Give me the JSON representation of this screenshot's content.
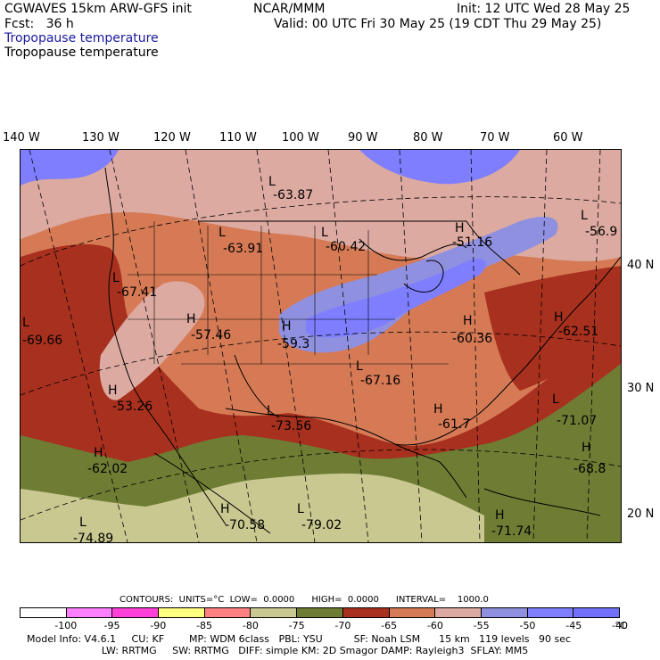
{
  "header": {
    "line1_left": "CGWAVES 15km ARW-GFS init",
    "line1_center": "NCAR/MMM",
    "line1_right": "Init: 12 UTC Wed 28 May 25",
    "line2_left": "Fcst:   36 h",
    "line2_right": "Valid: 00 UTC Fri 30 May 25 (19 CDT Thu 29 May 25)",
    "field_title_blue": "Tropopause temperature",
    "field_title_black": "Tropopause temperature"
  },
  "axes": {
    "longitude_labels": [
      "140 W",
      "130 W",
      "120 W",
      "110 W",
      "100 W",
      "90 W",
      "80 W",
      "70 W",
      "60 W"
    ],
    "latitude_labels": [
      "40 N",
      "30 N",
      "20 N"
    ]
  },
  "map": {
    "labels": [
      {
        "letter": "L",
        "value": "-63.87"
      },
      {
        "letter": "L",
        "value": "-63.91"
      },
      {
        "letter": "L",
        "value": "-60.42"
      },
      {
        "letter": "H",
        "value": "-51.16"
      },
      {
        "letter": "L",
        "value": "-56.9"
      },
      {
        "letter": "L",
        "value": "-67.41"
      },
      {
        "letter": "H",
        "value": "-57.46"
      },
      {
        "letter": "H",
        "value": "-59.3"
      },
      {
        "letter": "L",
        "value": "-69.66"
      },
      {
        "letter": "H",
        "value": "-60.36"
      },
      {
        "letter": "H",
        "value": "-62.51"
      },
      {
        "letter": "L",
        "value": "-67.16"
      },
      {
        "letter": "H",
        "value": "-53.26"
      },
      {
        "letter": "L",
        "value": "-73.56"
      },
      {
        "letter": "H",
        "value": "-61.7"
      },
      {
        "letter": "L",
        "value": "-71.07"
      },
      {
        "letter": "H",
        "value": "-62.02"
      },
      {
        "letter": "H",
        "value": "-68.8"
      },
      {
        "letter": "H",
        "value": "-70.58"
      },
      {
        "letter": "L",
        "value": "-79.02"
      },
      {
        "letter": "L",
        "value": "-74.89"
      },
      {
        "letter": "H",
        "value": "-71.74"
      }
    ]
  },
  "colorbar": {
    "contours_text": "CONTOURS:  UNITS=°C  LOW=  0.0000      HIGH=  0.0000      INTERVAL=    1000.0",
    "colors": [
      "#ffffff",
      "#ff80ff",
      "#ff40d8",
      "#ffff80",
      "#ff8080",
      "#c8c890",
      "#6e7c34",
      "#a8301e",
      "#d67a55",
      "#dcaaa0",
      "#9090e0",
      "#7e7eff",
      "#7070f8"
    ],
    "ticks": [
      "-100",
      "-95",
      "-90",
      "-85",
      "-80",
      "-75",
      "-70",
      "-65",
      "-60",
      "-55",
      "-50",
      "-45",
      "-40"
    ],
    "unit": "°C"
  },
  "footer": {
    "line1": "Model Info: V4.6.1     CU: KF        MP: WDM 6class   PBL: YSU          SF: Noah LSM      15 km   119 levels   90 sec",
    "line2": "                        LW: RRTMG     SW: RRTMG   DIFF: simple KM: 2D Smagor DAMP: Rayleigh3  SFLAY: MM5"
  }
}
